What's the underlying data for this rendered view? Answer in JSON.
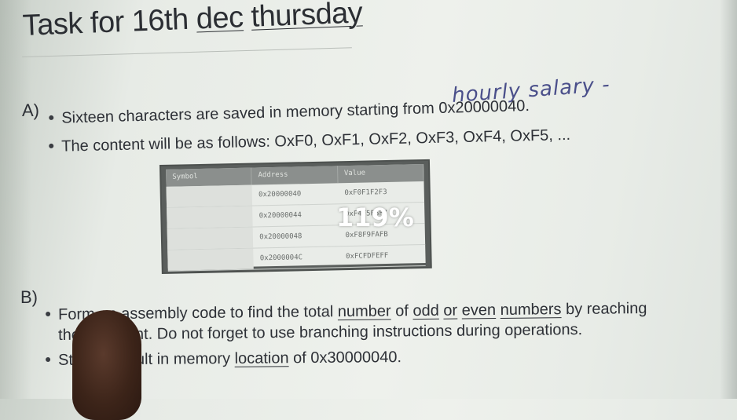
{
  "slide": {
    "title_prefix": "Task for 16th ",
    "title_dec": "dec",
    "title_space": " ",
    "title_thursday": "thursday",
    "section_a": "A)",
    "section_b": "B)",
    "a_bullets": [
      "Sixteen characters are saved in memory starting from 0x20000040.",
      "The content will be as follows: OxF0, OxF1, OxF2, OxF3, OxF4, OxF5, ..."
    ],
    "b_bullet1_line1_parts": [
      "Form an assembly code to find the total ",
      "number",
      " of ",
      "odd",
      " ",
      "or",
      " ",
      "even",
      " ",
      "numbers",
      " by reaching"
    ],
    "b_bullet1_line2": "the      y content. Do not forget to use branching instructions during operations.",
    "b_bullet2_parts": [
      "St",
      "sult in memory ",
      "location",
      " of 0x30000040."
    ],
    "handwritten_note": "hourly salary -",
    "zoom_overlay": "119%"
  },
  "table": {
    "headers": [
      "Symbol",
      "Address",
      "Value"
    ],
    "rows": [
      [
        "",
        "0x20000040",
        "0xF0F1F2F3"
      ],
      [
        "",
        "0x20000044",
        "0xF4F5F6F7"
      ],
      [
        "",
        "0x20000048",
        "0xF8F9FAFB"
      ],
      [
        "",
        "0x2000004C",
        "0xFCFDFEFF"
      ]
    ]
  }
}
